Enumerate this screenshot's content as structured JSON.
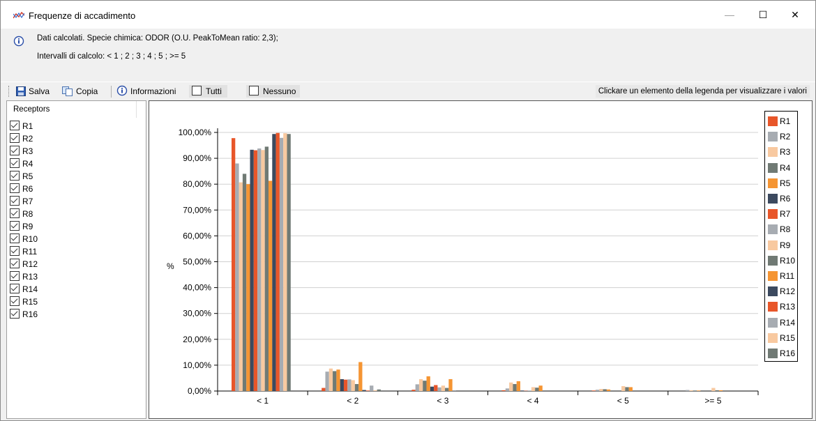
{
  "window": {
    "title": "Frequenze di accadimento",
    "minimize": "—",
    "maximize": "☐",
    "close": "✕"
  },
  "info": {
    "line1": "Dati calcolati. Specie chimica: ODOR (O.U. PeakToMean ratio: 2,3);",
    "line2": "Intervalli di calcolo: < 1 ; 2 ; 3 ; 4 ; 5 ; >= 5"
  },
  "toolbar": {
    "save_label": "Salva",
    "copy_label": "Copia",
    "info_label": "Informazioni",
    "all_label": "Tutti",
    "none_label": "Nessuno",
    "hint": "Clickare un elemento della legenda per visualizzare i valori"
  },
  "receptors": {
    "header": "Receptors",
    "items": [
      {
        "label": "R1",
        "checked": true
      },
      {
        "label": "R2",
        "checked": true
      },
      {
        "label": "R3",
        "checked": true
      },
      {
        "label": "R4",
        "checked": true
      },
      {
        "label": "R5",
        "checked": true
      },
      {
        "label": "R6",
        "checked": true
      },
      {
        "label": "R7",
        "checked": true
      },
      {
        "label": "R8",
        "checked": true
      },
      {
        "label": "R9",
        "checked": true
      },
      {
        "label": "R10",
        "checked": true
      },
      {
        "label": "R11",
        "checked": true
      },
      {
        "label": "R12",
        "checked": true
      },
      {
        "label": "R13",
        "checked": true
      },
      {
        "label": "R14",
        "checked": true
      },
      {
        "label": "R15",
        "checked": true
      },
      {
        "label": "R16",
        "checked": true
      }
    ]
  },
  "chart_data": {
    "type": "bar",
    "ylabel": "%",
    "ylim": [
      0,
      100
    ],
    "yticks": [
      "0,00%",
      "10,00%",
      "20,00%",
      "30,00%",
      "40,00%",
      "50,00%",
      "60,00%",
      "70,00%",
      "80,00%",
      "90,00%",
      "100,00%"
    ],
    "grid": true,
    "legend_position": "right",
    "categories": [
      "< 1",
      "< 2",
      "< 3",
      "< 4",
      "< 5",
      ">= 5"
    ],
    "series": [
      {
        "name": "R1",
        "color": "#e8562a",
        "values": [
          97.8,
          1.2,
          0.5,
          0.3,
          0.2,
          0.0
        ]
      },
      {
        "name": "R2",
        "color": "#a7acb2",
        "values": [
          88.0,
          7.5,
          2.6,
          1.0,
          0.5,
          0.4
        ]
      },
      {
        "name": "R3",
        "color": "#f8c9a0",
        "values": [
          80.7,
          8.7,
          4.6,
          3.3,
          0.8,
          0.3
        ]
      },
      {
        "name": "R4",
        "color": "#707a74",
        "values": [
          84.0,
          7.7,
          4.0,
          2.7,
          0.7,
          0.2
        ]
      },
      {
        "name": "R5",
        "color": "#f59533",
        "values": [
          80.0,
          8.3,
          5.7,
          3.8,
          0.6,
          0.2
        ]
      },
      {
        "name": "R6",
        "color": "#3c4a5f",
        "values": [
          93.3,
          4.6,
          1.7,
          0.2,
          0.0,
          0.0
        ]
      },
      {
        "name": "R7",
        "color": "#e8562a",
        "values": [
          93.1,
          4.4,
          2.3,
          0.1,
          0.0,
          0.0
        ]
      },
      {
        "name": "R8",
        "color": "#a7acb2",
        "values": [
          93.8,
          4.5,
          1.4,
          0.2,
          0.0,
          0.0
        ]
      },
      {
        "name": "R9",
        "color": "#f8c9a0",
        "values": [
          93.2,
          4.2,
          2.1,
          1.5,
          1.9,
          1.2
        ]
      },
      {
        "name": "R10",
        "color": "#707a74",
        "values": [
          94.5,
          2.7,
          1.2,
          1.3,
          1.5,
          0.3
        ]
      },
      {
        "name": "R11",
        "color": "#f59533",
        "values": [
          81.3,
          11.2,
          4.6,
          2.1,
          1.5,
          0.3
        ]
      },
      {
        "name": "R12",
        "color": "#3c4a5f",
        "values": [
          99.4,
          0.4,
          0.1,
          0.0,
          0.0,
          0.0
        ]
      },
      {
        "name": "R13",
        "color": "#e8562a",
        "values": [
          99.8,
          0.2,
          0.0,
          0.0,
          0.0,
          0.0
        ]
      },
      {
        "name": "R14",
        "color": "#a7acb2",
        "values": [
          97.9,
          2.1,
          0.0,
          0.0,
          0.0,
          0.0
        ]
      },
      {
        "name": "R15",
        "color": "#f8c9a0",
        "values": [
          99.7,
          0.3,
          0.0,
          0.0,
          0.0,
          0.0
        ]
      },
      {
        "name": "R16",
        "color": "#707a74",
        "values": [
          99.4,
          0.6,
          0.0,
          0.0,
          0.0,
          0.0
        ]
      }
    ]
  }
}
